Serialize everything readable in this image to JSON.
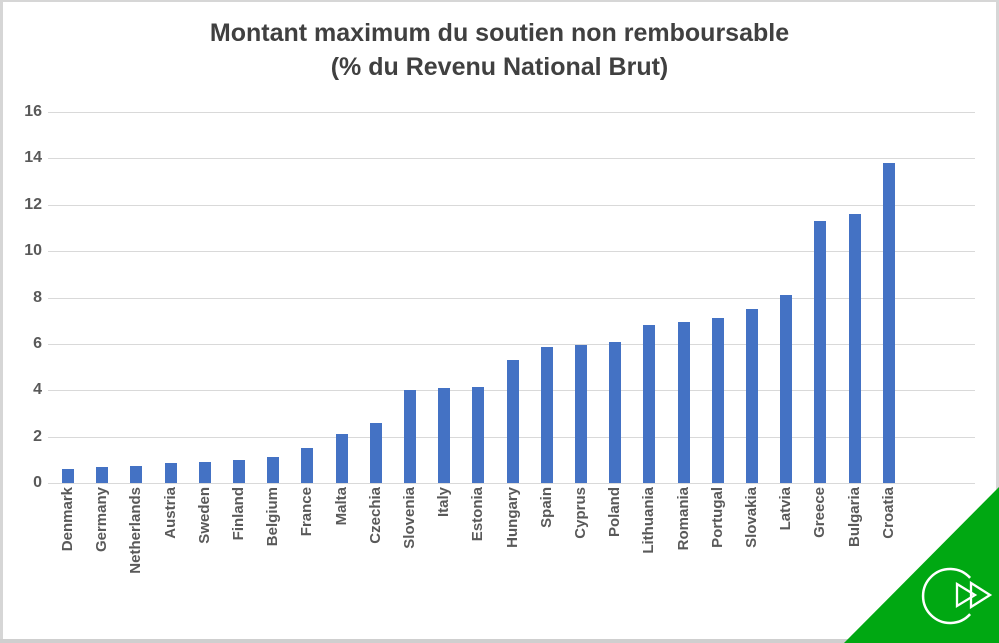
{
  "slide": {
    "background": "#ffffff",
    "border_color": "#d6d6d6"
  },
  "chart_data": {
    "type": "bar",
    "title_line1": "Montant maximum du soutien non remboursable",
    "title_line2": "(% du Revenu National Brut)",
    "xlabel": "",
    "ylabel": "",
    "categories": [
      "Denmark",
      "Germany",
      "Netherlands",
      "Austria",
      "Sweden",
      "Finland",
      "Belgium",
      "France",
      "Malta",
      "Czechia",
      "Slovenia",
      "Italy",
      "Estonia",
      "Hungary",
      "Spain",
      "Cyprus",
      "Poland",
      "Lithuania",
      "Romania",
      "Portugal",
      "Slovakia",
      "Latvia",
      "Greece",
      "Bulgaria",
      "Croatia"
    ],
    "values": [
      0.6,
      0.7,
      0.75,
      0.85,
      0.9,
      1.0,
      1.1,
      1.5,
      2.1,
      2.6,
      4.0,
      4.1,
      4.15,
      5.3,
      5.85,
      5.95,
      6.1,
      6.8,
      6.95,
      7.1,
      7.5,
      8.1,
      11.3,
      11.6,
      13.8
    ],
    "y_ticks": [
      0,
      2,
      4,
      6,
      8,
      10,
      12,
      14,
      16
    ],
    "ylim": [
      0,
      16
    ],
    "grid": true,
    "legend_position": "none",
    "bar_color": "#4472C4",
    "gridline_color": "#d9d9d9",
    "tick_label_color": "#595959",
    "title_color": "#404040"
  },
  "decoration": {
    "corner_triangle_color": "#00A812",
    "logo_icon": "circular-double-arrow-logo",
    "logo_stroke_color": "#ffffff"
  }
}
